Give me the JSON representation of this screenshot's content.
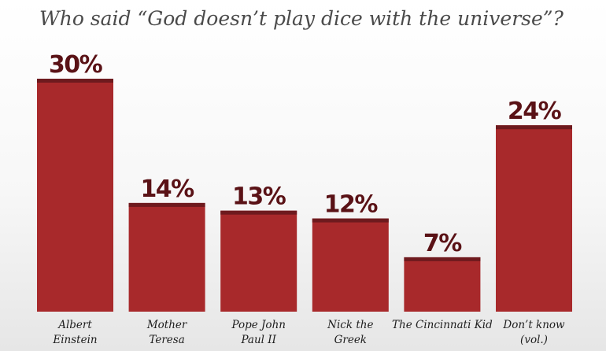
{
  "chart_data": {
    "type": "bar",
    "title": "Who said “God doesn’t play dice with the universe”?",
    "categories": [
      [
        "Albert",
        "Einstein"
      ],
      [
        "Mother",
        "Teresa"
      ],
      [
        "Pope John",
        "Paul II"
      ],
      [
        "Nick the",
        "Greek"
      ],
      [
        "The Cincinnati Kid"
      ],
      [
        "Don’t know",
        "(vol.)"
      ]
    ],
    "values": [
      30,
      14,
      13,
      12,
      7,
      24
    ],
    "value_labels": [
      "30%",
      "14%",
      "13%",
      "12%",
      "7%",
      "24%"
    ],
    "ylim": [
      0,
      30
    ],
    "grid": false,
    "legend": "none"
  },
  "colors": {
    "background_top": "#ffffff",
    "background_bottom": "#e6e6e6",
    "bar_fill": "#a8292b",
    "bar_cap": "#6e1a1e",
    "value_label": "#5a1216",
    "title": "#4a4a4a",
    "category_label": "#1e1e1e"
  }
}
